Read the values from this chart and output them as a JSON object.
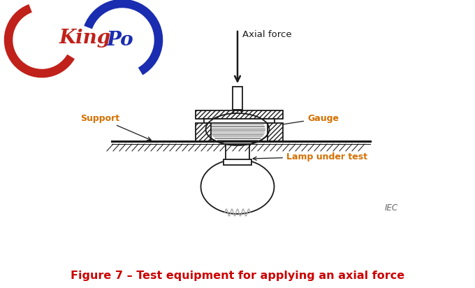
{
  "bg_color": "#ffffff",
  "title_text": "Figure 7 – Test equipment for applying an axial force",
  "title_color": "#cc0000",
  "title_fontsize": 11.5,
  "kingpo_king_color": "#c0211a",
  "kingpo_po_color": "#1a2db0",
  "label_axial": "Axial force",
  "label_support": "Support",
  "label_gauge": "Gauge",
  "label_lamp": "Lamp under test",
  "label_iec": "IEC",
  "line_color": "#1a1a1a",
  "annotation_color": "#1a1a1a",
  "label_color": "#d47000"
}
